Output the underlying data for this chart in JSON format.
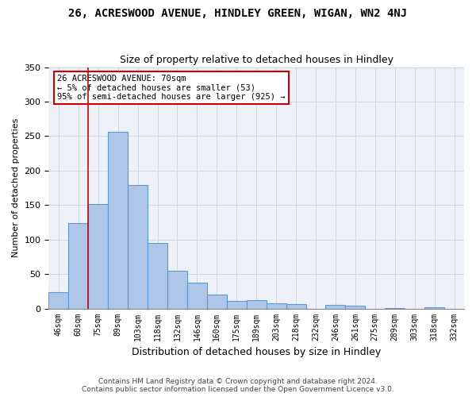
{
  "title": "26, ACRESWOOD AVENUE, HINDLEY GREEN, WIGAN, WN2 4NJ",
  "subtitle": "Size of property relative to detached houses in Hindley",
  "xlabel": "Distribution of detached houses by size in Hindley",
  "ylabel": "Number of detached properties",
  "categories": [
    "46sqm",
    "60sqm",
    "75sqm",
    "89sqm",
    "103sqm",
    "118sqm",
    "132sqm",
    "146sqm",
    "160sqm",
    "175sqm",
    "189sqm",
    "203sqm",
    "218sqm",
    "232sqm",
    "246sqm",
    "261sqm",
    "275sqm",
    "289sqm",
    "303sqm",
    "318sqm",
    "332sqm"
  ],
  "bar_values": [
    24,
    124,
    152,
    256,
    179,
    95,
    55,
    38,
    20,
    11,
    12,
    7,
    6,
    0,
    5,
    4,
    0,
    1,
    0,
    2,
    0
  ],
  "bar_color": "#aec6e8",
  "bar_edge_color": "#5b9bd5",
  "grid_color": "#d0d8e8",
  "background_color": "#eef2f8",
  "annotation_line1": "26 ACRESWOOD AVENUE: 70sqm",
  "annotation_line2": "← 5% of detached houses are smaller (53)",
  "annotation_line3": "95% of semi-detached houses are larger (925) →",
  "annotation_box_color": "#ffffff",
  "annotation_border_color": "#cc0000",
  "red_line_x": 1.5,
  "ylim": [
    0,
    350
  ],
  "yticks": [
    0,
    50,
    100,
    150,
    200,
    250,
    300,
    350
  ],
  "footer_line1": "Contains HM Land Registry data © Crown copyright and database right 2024.",
  "footer_line2": "Contains public sector information licensed under the Open Government Licence v3.0."
}
